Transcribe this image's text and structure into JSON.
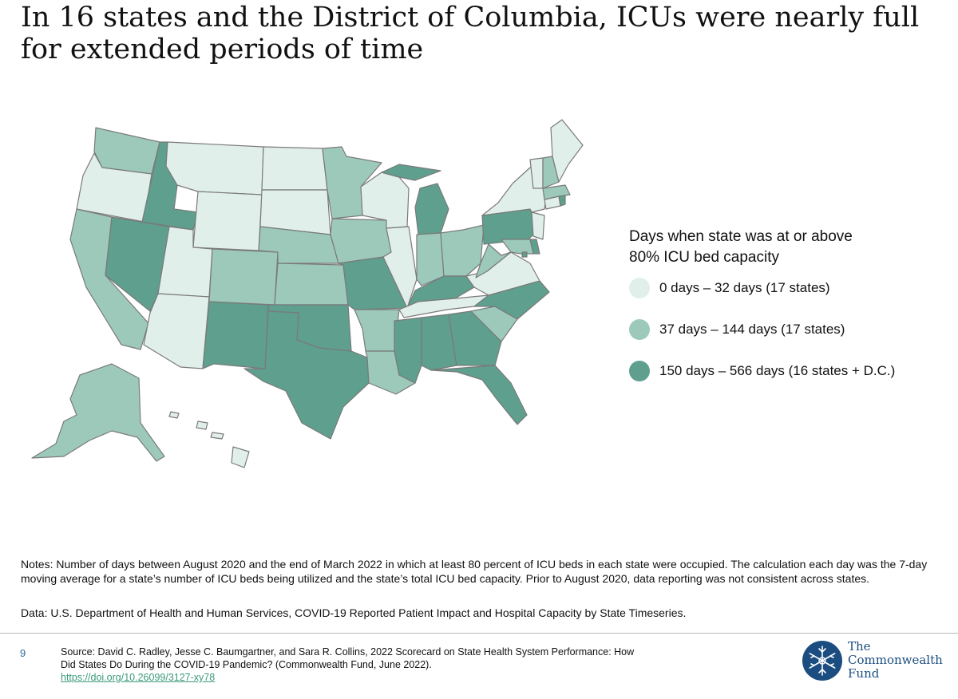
{
  "title": "In 16 states and the District of Columbia, ICUs were nearly full for extended periods of time",
  "legend": {
    "title_line1": "Days when state was at or above",
    "title_line2": "80% ICU bed capacity",
    "items": [
      {
        "label": "0 days – 32 days (17 states)",
        "color": "#e1efea"
      },
      {
        "label": "37 days – 144 days (17 states)",
        "color": "#9dc9bb"
      },
      {
        "label": "150 days – 566 days (16 states + D.C.)",
        "color": "#5e9f8d"
      }
    ]
  },
  "notes": "Notes: Number of days between August 2020 and the end of March 2022 in which at least 80 percent of ICU beds in each state were occupied. The calculation each day was the 7-day moving average for a state’s number of ICU beds being utilized and the state’s total ICU bed capacity. Prior to August 2020, data reporting was not consistent across states.",
  "data_source": "Data: U.S. Department of Health and Human Services, COVID-19 Reported Patient Impact and Hospital Capacity by State Timeseries.",
  "footer": {
    "page_number": "9",
    "source_text": "Source: David C. Radley, Jesse C. Baumgartner, and Sara R. Collins, 2022 Scorecard on State Health System Performance: How Did States Do During the COVID-19 Pandemic? (Commonwealth Fund, June 2022).",
    "source_link": "https://doi.org/10.26099/3127-xy78",
    "logo_line1": "The",
    "logo_line2": "Commonwealth",
    "logo_line3": "Fund"
  },
  "map_states": {
    "low": [
      "OR",
      "MT",
      "ND",
      "SD",
      "WY",
      "UT",
      "AZ",
      "WI",
      "IL",
      "TN",
      "VA",
      "NY",
      "ME",
      "NJ",
      "CT",
      "HI",
      "VT"
    ],
    "mid": [
      "WA",
      "CA",
      "MN",
      "NE",
      "CO",
      "KS",
      "IA",
      "AR",
      "LA",
      "IN",
      "OH",
      "WV",
      "SC",
      "NH",
      "MA",
      "MD",
      "AK"
    ],
    "high": [
      "ID",
      "NV",
      "NM",
      "TX",
      "OK",
      "MO",
      "MI",
      "KY",
      "MS",
      "AL",
      "GA",
      "FL",
      "NC",
      "PA",
      "DE",
      "RI",
      "DC"
    ]
  }
}
